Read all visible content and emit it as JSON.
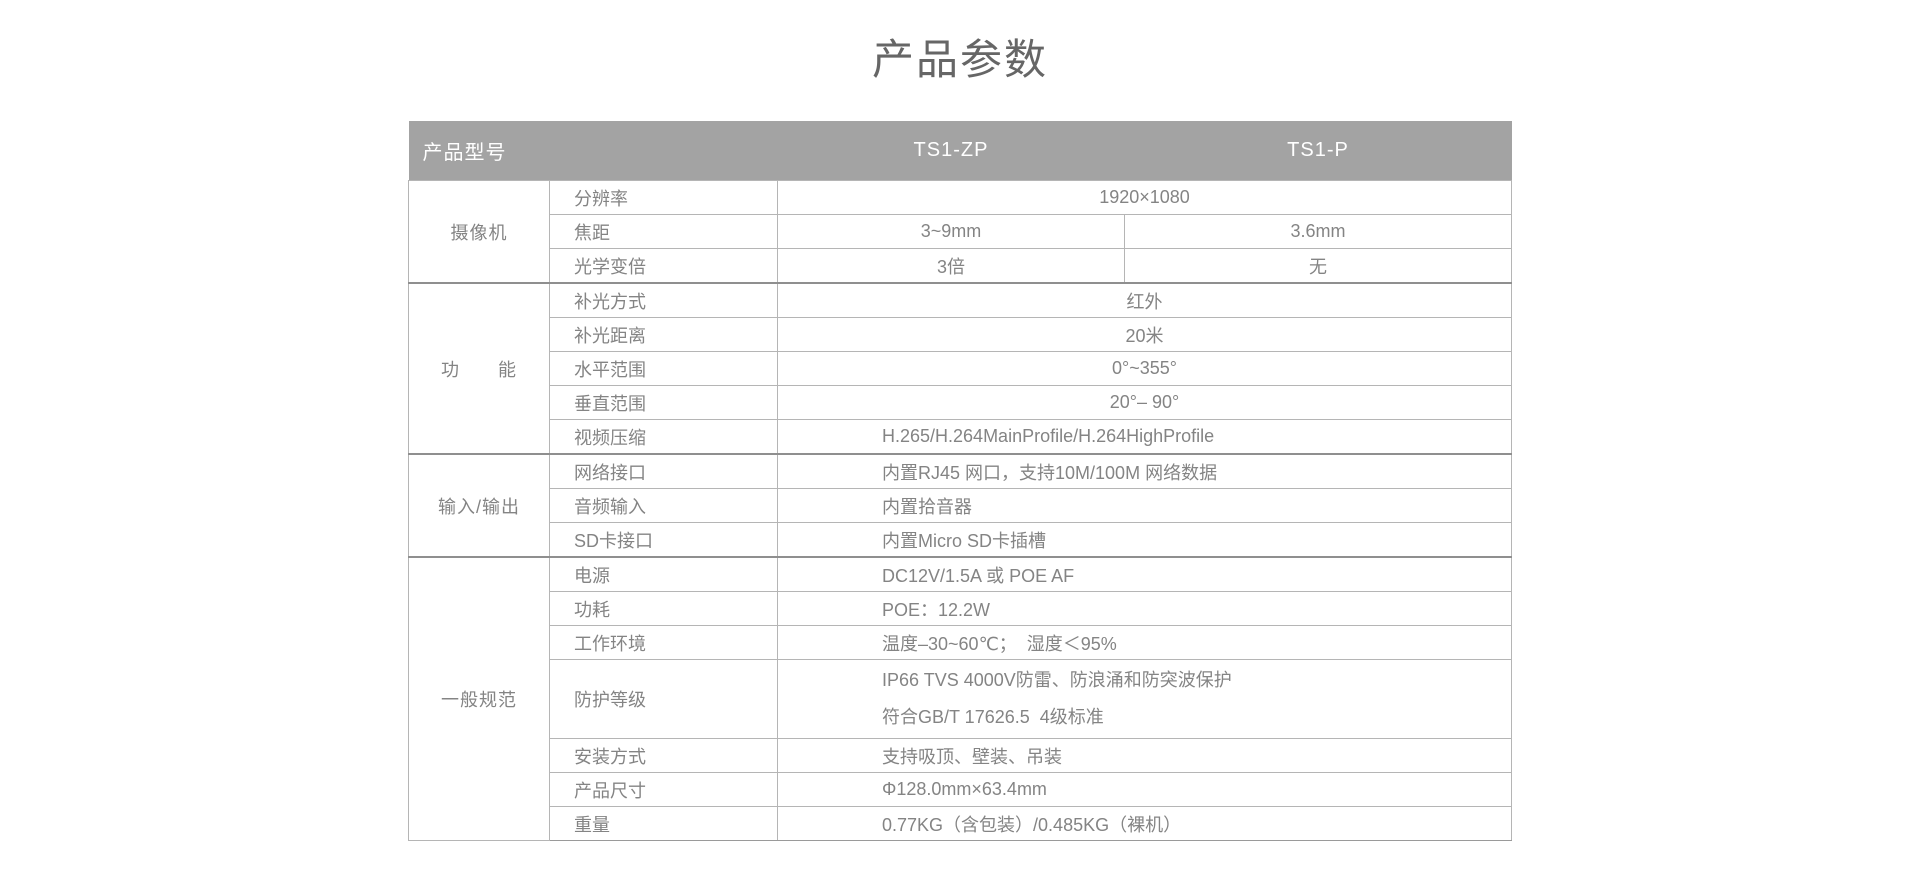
{
  "page": {
    "title": "产品参数"
  },
  "table": {
    "header": {
      "col_model": "产品型号",
      "col_zp": "TS1-ZP",
      "col_p": "TS1-P"
    },
    "colors": {
      "header_bg": "#a3a3a3",
      "header_text": "#ffffff",
      "body_text": "#848484",
      "grid_line": "#b5b5b5",
      "section_line": "#8f8f8f",
      "title_text": "#666666"
    },
    "sections": [
      {
        "category": "摄像机",
        "rows": [
          {
            "label": "分辨率",
            "merged": true,
            "value": "1920×1080",
            "align": "center"
          },
          {
            "label": "焦距",
            "merged": false,
            "zp": "3~9mm",
            "p": "3.6mm"
          },
          {
            "label": "光学变倍",
            "merged": false,
            "zp": "3倍",
            "p": "无"
          }
        ]
      },
      {
        "category": "功　　能",
        "rows": [
          {
            "label": "补光方式",
            "merged": true,
            "value": "红外",
            "align": "center"
          },
          {
            "label": "补光距离",
            "merged": true,
            "value": "20米",
            "align": "center"
          },
          {
            "label": "水平范围",
            "merged": true,
            "value": "0°~355°",
            "align": "center"
          },
          {
            "label": "垂直范围",
            "merged": true,
            "value": "20°– 90°",
            "align": "center"
          },
          {
            "label": "视频压缩",
            "merged": true,
            "value": "H.265/H.264MainProfile/H.264HighProfile",
            "align": "left"
          }
        ]
      },
      {
        "category": "输入/输出",
        "rows": [
          {
            "label": "网络接口",
            "merged": true,
            "value": "内置RJ45 网口，支持10M/100M 网络数据",
            "align": "left"
          },
          {
            "label": "音频输入",
            "merged": true,
            "value": "内置拾音器",
            "align": "left"
          },
          {
            "label": "SD卡接口",
            "merged": true,
            "value": "内置Micro SD卡插槽",
            "align": "left"
          }
        ]
      },
      {
        "category": "一般规范",
        "rows": [
          {
            "label": "电源",
            "merged": true,
            "value": "DC12V/1.5A 或 POE AF",
            "align": "left"
          },
          {
            "label": "功耗",
            "merged": true,
            "value": "POE：12.2W",
            "align": "left"
          },
          {
            "label": "工作环境",
            "merged": true,
            "value": "温度–30~60℃；  湿度＜95%",
            "align": "left"
          },
          {
            "label": "防护等级",
            "merged": true,
            "tall": true,
            "align": "left",
            "lines": [
              "IP66 TVS 4000V防雷、防浪涌和防突波保护",
              "符合GB/T 17626.5  4级标准"
            ]
          },
          {
            "label": "安装方式",
            "merged": true,
            "value": "支持吸顶、壁装、吊装",
            "align": "left"
          },
          {
            "label": "产品尺寸",
            "merged": true,
            "value": "Φ128.0mm×63.4mm",
            "align": "left"
          },
          {
            "label": "重量",
            "merged": true,
            "value": "0.77KG（含包装）/0.485KG（裸机）",
            "align": "left"
          }
        ]
      }
    ]
  }
}
